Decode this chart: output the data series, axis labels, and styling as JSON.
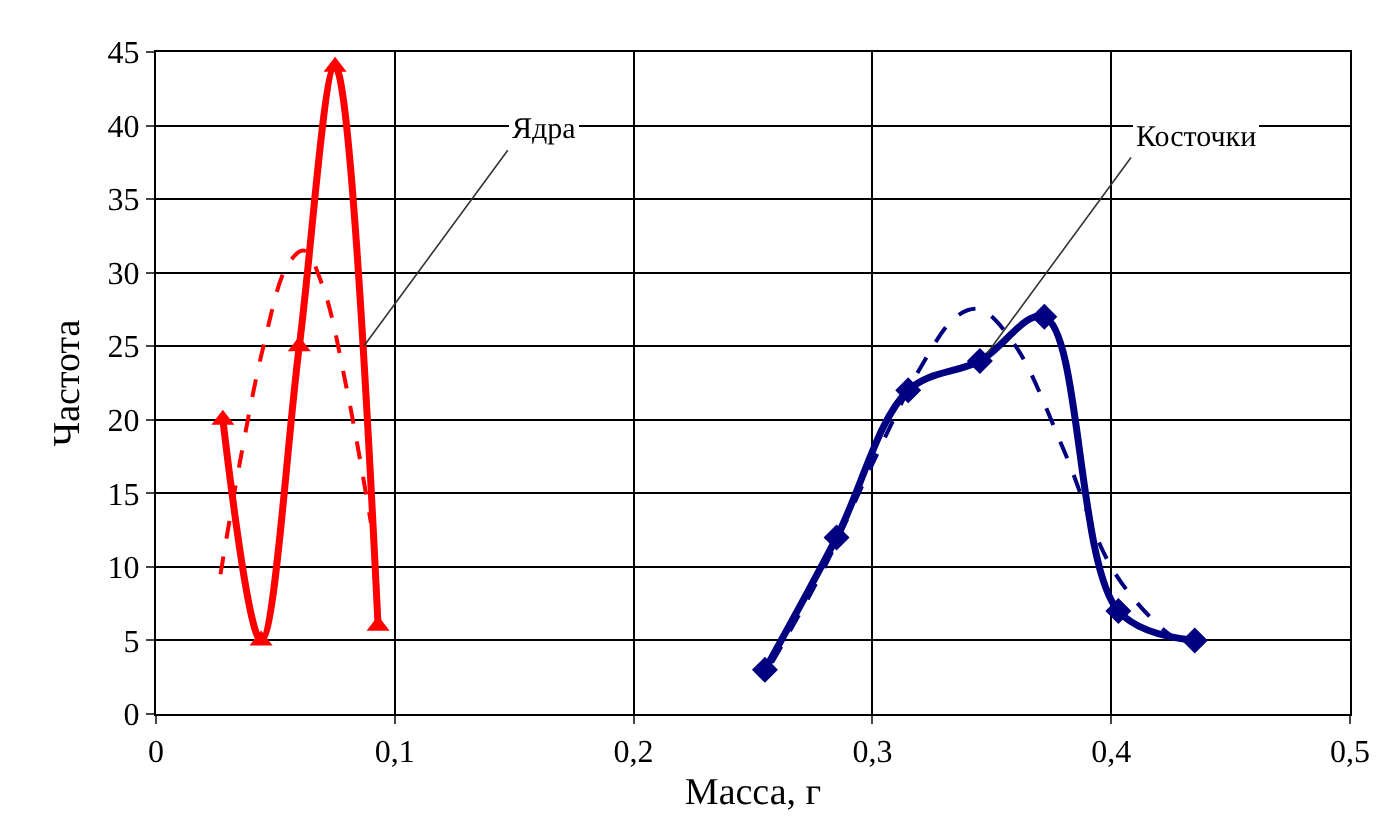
{
  "chart_data": {
    "type": "line",
    "xlabel": "Масса, г",
    "ylabel": "Частота",
    "xlim": [
      0,
      0.5
    ],
    "xticks": [
      0,
      {
        "value": 0.1,
        "label": "0,1"
      },
      {
        "value": 0.2,
        "label": "0,2"
      },
      {
        "value": 0.3,
        "label": "0,3"
      },
      {
        "value": 0.4,
        "label": "0,4"
      },
      {
        "value": 0.5,
        "label": "0,5"
      }
    ],
    "ylim": [
      0,
      45
    ],
    "yticks": [
      0,
      5,
      10,
      15,
      20,
      25,
      30,
      35,
      40,
      45
    ],
    "grid": true,
    "series": [
      {
        "color": "#ff0000",
        "marker": "triangle",
        "line_style": "solid",
        "x": [
          0.028,
          0.044,
          0.06,
          0.075,
          0.093
        ],
        "values": [
          20,
          5,
          25,
          44,
          6
        ]
      },
      {
        "color": "#ff0000",
        "marker": "none",
        "line_style": "dashed",
        "x": [
          0.027,
          0.035,
          0.045,
          0.055,
          0.062,
          0.07,
          0.08,
          0.09
        ],
        "values": [
          9.5,
          17,
          25,
          30.5,
          31.5,
          29,
          22,
          13
        ]
      },
      {
        "color": "#000080",
        "marker": "diamond",
        "line_style": "solid",
        "x": [
          0.255,
          0.285,
          0.315,
          0.345,
          0.372,
          0.403,
          0.435
        ],
        "values": [
          3,
          12,
          22,
          24,
          27,
          7,
          5
        ]
      },
      {
        "color": "#000080",
        "marker": "none",
        "line_style": "dashed",
        "x": [
          0.258,
          0.28,
          0.3,
          0.32,
          0.335,
          0.345,
          0.36,
          0.38,
          0.4,
          0.42,
          0.433
        ],
        "values": [
          3.5,
          10,
          17,
          23.5,
          27,
          27.5,
          25,
          18,
          10,
          6,
          4.5
        ]
      }
    ],
    "annotations": [
      {
        "text": "Ядра",
        "x": 0.087,
        "y": 25
      },
      {
        "text": "Косточки",
        "x": 0.348,
        "y": 24.5
      }
    ]
  }
}
